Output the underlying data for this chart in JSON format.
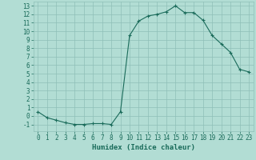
{
  "x": [
    0,
    1,
    2,
    3,
    4,
    5,
    6,
    7,
    8,
    9,
    10,
    11,
    12,
    13,
    14,
    15,
    16,
    17,
    18,
    19,
    20,
    21,
    22,
    23
  ],
  "y": [
    0.5,
    -0.2,
    -0.5,
    -0.8,
    -1.0,
    -1.0,
    -0.9,
    -0.9,
    -1.0,
    0.5,
    9.5,
    11.2,
    11.8,
    12.0,
    12.3,
    13.0,
    12.2,
    12.2,
    11.3,
    9.5,
    8.5,
    7.5,
    5.5,
    5.2
  ],
  "line_color": "#1a6b5a",
  "marker": "+",
  "marker_color": "#1a6b5a",
  "bg_color": "#b2ddd4",
  "grid_color": "#8fbfb8",
  "xlabel": "Humidex (Indice chaleur)",
  "ylim": [
    -1.8,
    13.5
  ],
  "xlim": [
    -0.5,
    23.5
  ],
  "yticks": [
    -1,
    0,
    1,
    2,
    3,
    4,
    5,
    6,
    7,
    8,
    9,
    10,
    11,
    12,
    13
  ],
  "xticks": [
    0,
    1,
    2,
    3,
    4,
    5,
    6,
    7,
    8,
    9,
    10,
    11,
    12,
    13,
    14,
    15,
    16,
    17,
    18,
    19,
    20,
    21,
    22,
    23
  ],
  "title_color": "#1a6b5a",
  "font_size": 5.5,
  "label_font_size": 6.5
}
